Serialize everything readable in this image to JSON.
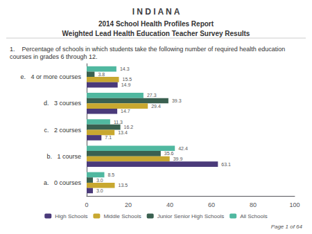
{
  "chart_data": {
    "type": "bar",
    "orientation": "horizontal",
    "title": "I N D I A N A",
    "subtitle": [
      "2014 School Health Profiles Report",
      "Weighted Lead Health Education Teacher Survey Results"
    ],
    "annotations": [
      "1.    Percentage of schools in which students take the following number of required health education courses in grades 6 through 12.",
      "Page 1 of 64"
    ],
    "categories": [
      "a.   0 courses",
      "b.   1 course",
      "c.   2 courses",
      "d.   3 courses",
      "e.   4 or more courses"
    ],
    "series": [
      {
        "name": "High Schools",
        "color": "#4a3a7a",
        "values": [
          3.0,
          63.1,
          7.1,
          14.7,
          14.9
        ],
        "value_labels": [
          "3.0",
          "63.1",
          "7.1",
          "14.7",
          "14.9"
        ]
      },
      {
        "name": "Middle Schools",
        "color": "#c8a830",
        "values": [
          13.5,
          39.9,
          13.4,
          29.4,
          15.5
        ],
        "value_labels": [
          "13.5",
          "39.9",
          "13.4",
          "29.4",
          "15.5"
        ]
      },
      {
        "name": "Junior Senior High Schools",
        "color": "#3a6050",
        "values": [
          3.0,
          35.6,
          16.2,
          39.3,
          3.8
        ],
        "value_labels": [
          "3.0",
          "35.6",
          "16.2",
          "39.3",
          "3.8"
        ]
      },
      {
        "name": "All Schools",
        "color": "#50b8a0",
        "values": [
          8.5,
          42.4,
          11.3,
          27.3,
          14.3
        ],
        "value_labels": [
          "8.5",
          "42.4",
          "11.3",
          "27.3",
          "14.3"
        ]
      }
    ],
    "xlim": [
      0,
      100
    ],
    "xticks": [
      0,
      20,
      40,
      60,
      80,
      100
    ],
    "data_labels": true,
    "legend": "bottom",
    "grid": false
  }
}
